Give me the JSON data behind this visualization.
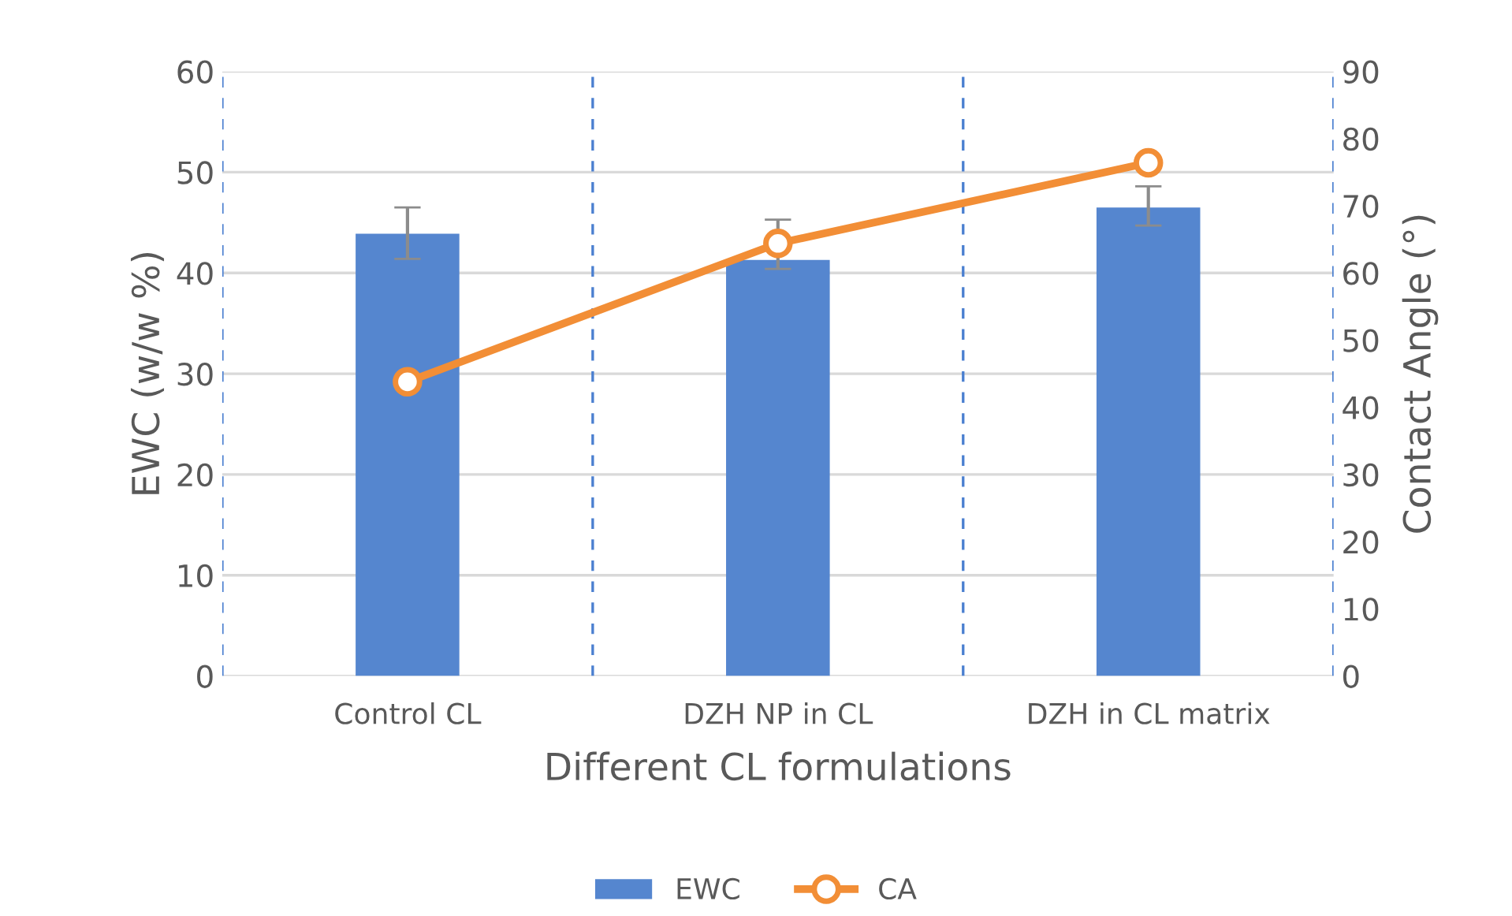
{
  "chart_data": {
    "type": "bar",
    "xlabel": "Different CL formulations",
    "ylabel": "EWC (w/w %)",
    "y2label": "Contact Angle (°)",
    "categories": [
      "Control CL",
      "DZH NP in CL",
      "DZH in CL matrix"
    ],
    "series": [
      {
        "name": "EWC",
        "color": "#5586cf",
        "values": [
          43.9,
          41.3,
          46.5
        ],
        "errors": [
          [
            41.4,
            46.5
          ],
          [
            40.4,
            45.3
          ],
          [
            44.7,
            48.6
          ]
        ]
      },
      {
        "name": "CA",
        "type": "line",
        "axis": "y2",
        "color": "#f28e36",
        "marker": "circle",
        "line_style": "solid",
        "values": [
          43.8,
          64.4,
          76.4
        ]
      }
    ],
    "ylim": [
      0,
      60
    ],
    "yticks": [
      0,
      10,
      20,
      30,
      40,
      50,
      60
    ],
    "y2lim": [
      0,
      90
    ],
    "y2ticks": [
      0,
      10,
      20,
      30,
      40,
      50,
      60,
      70,
      80,
      90
    ],
    "grid": true,
    "legend": "bottom"
  }
}
